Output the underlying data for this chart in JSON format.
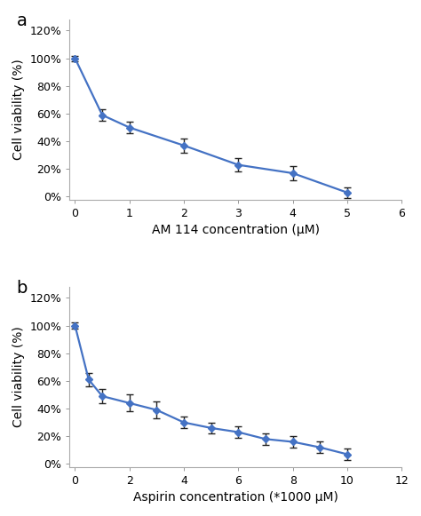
{
  "panel_a": {
    "label": "a",
    "x": [
      0,
      0.5,
      1,
      2,
      3,
      4,
      5
    ],
    "y": [
      1.0,
      0.59,
      0.5,
      0.37,
      0.23,
      0.17,
      0.03
    ],
    "yerr": [
      0.02,
      0.04,
      0.04,
      0.05,
      0.05,
      0.05,
      0.04
    ],
    "xlabel": "AM 114 concentration (μM)",
    "ylabel": "Cell viability (%)",
    "xlim": [
      -0.1,
      6.0
    ],
    "ylim": [
      -0.02,
      1.28
    ],
    "xticks": [
      0,
      1,
      2,
      3,
      4,
      5,
      6
    ],
    "yticks": [
      0.0,
      0.2,
      0.4,
      0.6,
      0.8,
      1.0,
      1.2
    ],
    "ytick_labels": [
      "0%",
      "20%",
      "40%",
      "60%",
      "80%",
      "100%",
      "120%"
    ]
  },
  "panel_b": {
    "label": "b",
    "x": [
      0,
      0.5,
      1,
      2,
      3,
      4,
      5,
      6,
      7,
      8,
      9,
      10
    ],
    "y": [
      1.0,
      0.61,
      0.49,
      0.44,
      0.39,
      0.3,
      0.26,
      0.23,
      0.18,
      0.16,
      0.12,
      0.07
    ],
    "yerr": [
      0.02,
      0.05,
      0.05,
      0.06,
      0.06,
      0.04,
      0.04,
      0.04,
      0.04,
      0.04,
      0.04,
      0.04
    ],
    "xlabel": "Aspirin concentration (*1000 μM)",
    "ylabel": "Cell viability (%)",
    "xlim": [
      -0.2,
      12.0
    ],
    "ylim": [
      -0.02,
      1.28
    ],
    "xticks": [
      0,
      2,
      4,
      6,
      8,
      10,
      12
    ],
    "yticks": [
      0.0,
      0.2,
      0.4,
      0.6,
      0.8,
      1.0,
      1.2
    ],
    "ytick_labels": [
      "0%",
      "20%",
      "40%",
      "60%",
      "80%",
      "100%",
      "120%"
    ]
  },
  "line_color": "#4472C4",
  "marker": "D",
  "markersize": 4,
  "linewidth": 1.6,
  "capsize": 3,
  "ecolor": "#222222",
  "elinewidth": 1.0,
  "label_fontsize": 10,
  "tick_fontsize": 9,
  "panel_label_fontsize": 14
}
